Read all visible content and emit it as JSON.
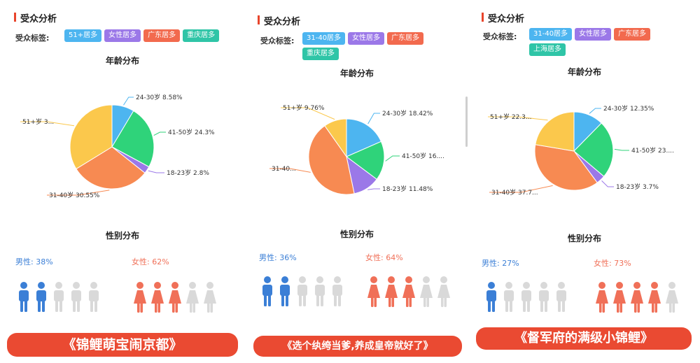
{
  "panels": [
    {
      "title": "受众分析",
      "tag_label": "受众标签:",
      "tags": [
        {
          "text": "51+居多",
          "color": "blue"
        },
        {
          "text": "女性居多",
          "color": "purple"
        },
        {
          "text": "广东居多",
          "color": "orange"
        },
        {
          "text": "重庆居多",
          "color": "teal"
        }
      ],
      "age_title": "年龄分布",
      "slices": [
        {
          "label": "24-30岁 8.58%",
          "value": 8.58,
          "color": "#4db5f0"
        },
        {
          "label": "41-50岁 24.3%",
          "value": 24.3,
          "color": "#2fd37a"
        },
        {
          "label": "18-23岁 2.8%",
          "value": 2.8,
          "color": "#9b78e8"
        },
        {
          "label": "31-40岁 30.55%",
          "value": 30.55,
          "color": "#f78a52"
        },
        {
          "label": "51+岁 3...",
          "value": 33.77,
          "color": "#fbc84c"
        }
      ],
      "gender_title": "性别分布",
      "male_label": "男性: 38%",
      "female_label": "女性: 62%",
      "male_pct": 38,
      "female_pct": 62,
      "banner": "《锦鲤萌宝闹京都》"
    },
    {
      "title": "受众分析",
      "tag_label": "受众标签:",
      "tags": [
        {
          "text": "31-40居多",
          "color": "blue"
        },
        {
          "text": "女性居多",
          "color": "purple"
        },
        {
          "text": "广东居多",
          "color": "orange"
        },
        {
          "text": "重庆居多",
          "color": "teal"
        }
      ],
      "age_title": "年龄分布",
      "slices": [
        {
          "label": "24-30岁 18.42%",
          "value": 18.42,
          "color": "#4db5f0"
        },
        {
          "label": "41-50岁 16....",
          "value": 16.8,
          "color": "#2fd37a"
        },
        {
          "label": "18-23岁 11.48%",
          "value": 11.48,
          "color": "#9b78e8"
        },
        {
          "label": "31-40...",
          "value": 43.54,
          "color": "#f78a52"
        },
        {
          "label": "51+岁 9.76%",
          "value": 9.76,
          "color": "#fbc84c"
        }
      ],
      "gender_title": "性别分布",
      "male_label": "男性: 36%",
      "female_label": "女性: 64%",
      "male_pct": 36,
      "female_pct": 64,
      "banner": "《选个纨绔当爹,养成皇帝就好了》"
    },
    {
      "title": "受众分析",
      "tag_label": "受众标签:",
      "tags": [
        {
          "text": "31-40居多",
          "color": "blue"
        },
        {
          "text": "女性居多",
          "color": "purple"
        },
        {
          "text": "广东居多",
          "color": "orange"
        },
        {
          "text": "上海居多",
          "color": "teal"
        }
      ],
      "age_title": "年龄分布",
      "slices": [
        {
          "label": "24-30岁 12.35%",
          "value": 12.35,
          "color": "#4db5f0"
        },
        {
          "label": "41-50岁 23....",
          "value": 23.85,
          "color": "#2fd37a"
        },
        {
          "label": "18-23岁 3.7%",
          "value": 3.7,
          "color": "#9b78e8"
        },
        {
          "label": "31-40岁 37.7...",
          "value": 37.75,
          "color": "#f78a52"
        },
        {
          "label": "51+岁 22.3...",
          "value": 22.35,
          "color": "#fbc84c"
        }
      ],
      "gender_title": "性别分布",
      "male_label": "男性: 27%",
      "female_label": "女性: 73%",
      "male_pct": 27,
      "female_pct": 73,
      "banner": "《督军府的满级小锦鲤》"
    }
  ]
}
